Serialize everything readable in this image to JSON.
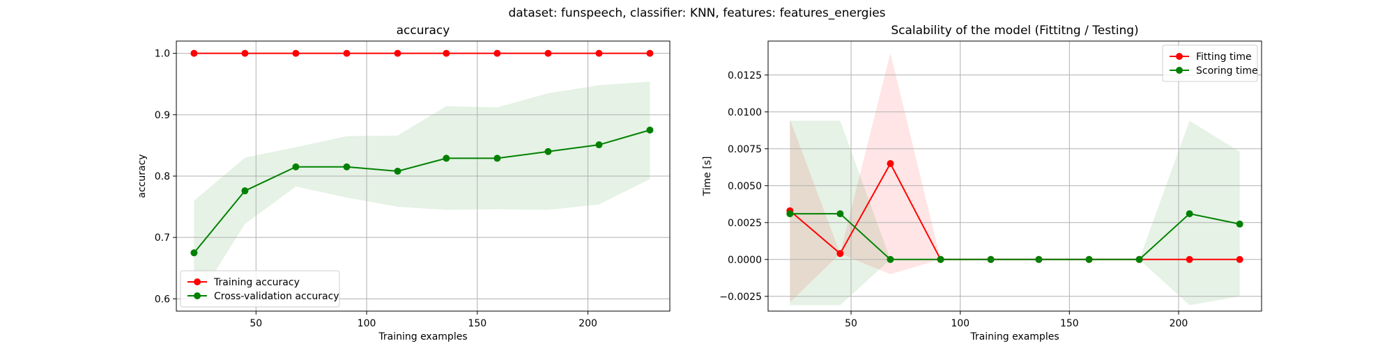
{
  "figure": {
    "suptitle": "dataset: funspeech, classifier: KNN, features: features_energies"
  },
  "chart_data": [
    {
      "type": "line",
      "title": "accuracy",
      "xlabel": "Training examples",
      "ylabel": "accuracy",
      "xlim": [
        14,
        237
      ],
      "ylim": [
        0.58,
        1.02
      ],
      "xticks": [
        50,
        100,
        150,
        200
      ],
      "yticks": [
        0.6,
        0.7,
        0.8,
        0.9,
        1.0
      ],
      "ytick_labels": [
        "0.6",
        "0.7",
        "0.8",
        "0.9",
        "1.0"
      ],
      "grid": true,
      "legend": "lower-left",
      "x": [
        22,
        45,
        68,
        91,
        114,
        136,
        159,
        182,
        205,
        228
      ],
      "series": [
        {
          "name": "Training accuracy",
          "color": "#ff0000",
          "values": [
            1.0,
            1.0,
            1.0,
            1.0,
            1.0,
            1.0,
            1.0,
            1.0,
            1.0,
            1.0
          ],
          "band": {
            "lower": [
              1.0,
              1.0,
              1.0,
              1.0,
              1.0,
              1.0,
              1.0,
              1.0,
              1.0,
              1.0
            ],
            "upper": [
              1.0,
              1.0,
              1.0,
              1.0,
              1.0,
              1.0,
              1.0,
              1.0,
              1.0,
              1.0
            ]
          }
        },
        {
          "name": "Cross-validation accuracy",
          "color": "#008000",
          "values": [
            0.675,
            0.776,
            0.815,
            0.815,
            0.808,
            0.829,
            0.829,
            0.84,
            0.851,
            0.875
          ],
          "band": {
            "lower": [
              0.59,
              0.722,
              0.783,
              0.765,
              0.75,
              0.745,
              0.746,
              0.745,
              0.754,
              0.795
            ],
            "upper": [
              0.76,
              0.83,
              0.847,
              0.865,
              0.866,
              0.914,
              0.912,
              0.935,
              0.948,
              0.954
            ]
          }
        }
      ]
    },
    {
      "type": "line",
      "title": "Scalability of the model (Fittitng / Testing)",
      "xlabel": "Training examples",
      "ylabel": "Time [s]",
      "xlim": [
        12,
        238
      ],
      "ylim": [
        -0.0035,
        0.0148
      ],
      "xticks": [
        50,
        100,
        150,
        200
      ],
      "yticks": [
        -0.0025,
        0.0,
        0.0025,
        0.005,
        0.0075,
        0.01,
        0.0125
      ],
      "ytick_labels": [
        "−0.0025",
        "0.0000",
        "0.0025",
        "0.0050",
        "0.0075",
        "0.0100",
        "0.0125"
      ],
      "grid": true,
      "legend": "upper-right",
      "x": [
        22,
        45,
        68,
        91,
        114,
        136,
        159,
        182,
        205,
        228
      ],
      "series": [
        {
          "name": "Fitting time",
          "color": "#ff0000",
          "values": [
            0.0033,
            0.0004,
            0.0065,
            0.0,
            0.0,
            0.0,
            0.0,
            0.0,
            0.0,
            0.0
          ],
          "band": {
            "lower": [
              -0.0029,
              0.0004,
              -0.001,
              0.0,
              0.0,
              0.0,
              0.0,
              0.0,
              0.0,
              0.0
            ],
            "upper": [
              0.0095,
              0.0004,
              0.014,
              0.0,
              0.0,
              0.0,
              0.0,
              0.0,
              0.0,
              0.0
            ]
          }
        },
        {
          "name": "Scoring time",
          "color": "#008000",
          "values": [
            0.0031,
            0.0031,
            0.0,
            0.0,
            0.0,
            0.0,
            0.0,
            0.0,
            0.0031,
            0.0024
          ],
          "band": {
            "lower": [
              -0.0031,
              -0.0031,
              0.0,
              0.0,
              0.0,
              0.0,
              0.0,
              0.0,
              -0.0031,
              -0.0025
            ],
            "upper": [
              0.0094,
              0.0094,
              0.0,
              0.0,
              0.0,
              0.0,
              0.0,
              0.0,
              0.0094,
              0.0073
            ]
          }
        }
      ]
    }
  ]
}
